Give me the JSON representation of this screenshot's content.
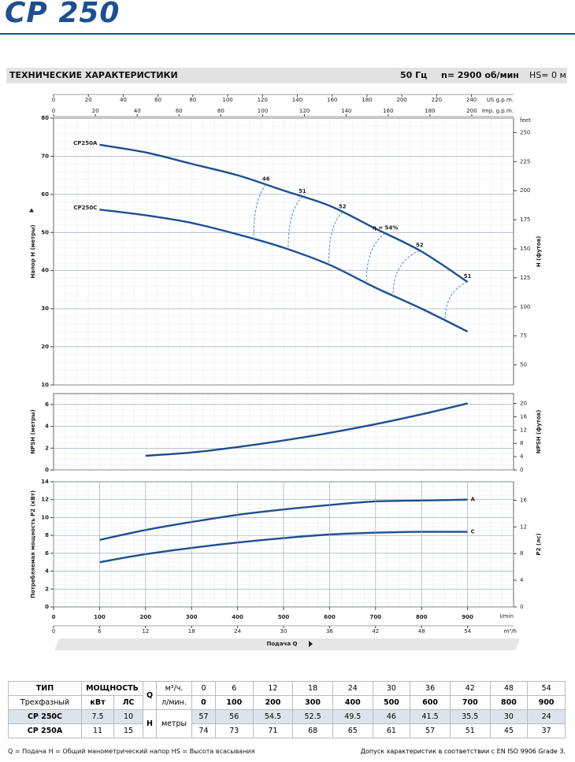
{
  "title": "CP 250",
  "header": {
    "left": "ТЕХНИЧЕСКИЕ ХАРАКТЕРИСТИКИ",
    "freq": "50 Гц",
    "speed": "n= 2900 об/мин",
    "hs": "HS= 0 м"
  },
  "chart_data": [
    {
      "type": "line",
      "ylabel": "Напор H (метры)",
      "y2label": "H (футов)",
      "y2unit": "feet",
      "x": [
        100,
        200,
        300,
        400,
        500,
        600,
        700,
        800,
        900
      ],
      "xlim": [
        0,
        1000
      ],
      "ylim": [
        10,
        80
      ],
      "yticks": [
        10,
        20,
        30,
        40,
        50,
        60,
        70,
        80
      ],
      "y2lim": [
        32.81,
        262.47
      ],
      "y2ticks": [
        50,
        75,
        100,
        125,
        150,
        175,
        200,
        225,
        250
      ],
      "top_axes": [
        {
          "label": "US g.p.m.",
          "lim": [
            0,
            264.17
          ],
          "ticks": [
            0,
            20,
            40,
            60,
            80,
            100,
            120,
            140,
            160,
            180,
            200,
            220,
            240
          ]
        },
        {
          "label": "Imp. g.p.m.",
          "lim": [
            0,
            219.97
          ],
          "ticks": [
            0,
            20,
            40,
            60,
            80,
            100,
            120,
            140,
            160,
            180,
            200
          ]
        }
      ],
      "series": [
        {
          "name": "CP250A",
          "color": "#1d4f91",
          "values": [
            73,
            71,
            68,
            65,
            61,
            57,
            51,
            45,
            37
          ]
        },
        {
          "name": "CP250C",
          "color": "#1d4f91",
          "values": [
            56,
            54.5,
            52.5,
            49.5,
            46,
            41.5,
            35.5,
            30,
            24
          ]
        }
      ],
      "efficiency_lines": [
        {
          "label": "46",
          "x": [
            462,
            435
          ]
        },
        {
          "label": "51",
          "x": [
            541,
            510
          ]
        },
        {
          "label": "52",
          "x": [
            628,
            598
          ]
        },
        {
          "label": "η = 54%",
          "x": [
            721,
            680
          ]
        },
        {
          "label": "52",
          "x": [
            796,
            738
          ]
        },
        {
          "label": "51",
          "x": [
            900,
            851
          ]
        }
      ],
      "grid": true
    },
    {
      "type": "line",
      "ylabel": "NPSH (метры)",
      "y2label": "NPSH (футов)",
      "x": [
        200,
        300,
        400,
        500,
        600,
        700,
        800,
        900
      ],
      "xlim": [
        0,
        1000
      ],
      "ylim": [
        0,
        7
      ],
      "yticks": [
        0,
        2,
        4,
        6
      ],
      "y2lim": [
        0,
        22.97
      ],
      "y2ticks": [
        0,
        4,
        8,
        12,
        16,
        20
      ],
      "series": [
        {
          "color": "#1d4f91",
          "values": [
            1.3,
            1.6,
            2.1,
            2.7,
            3.4,
            4.2,
            5.1,
            6.1
          ]
        }
      ],
      "grid": true
    },
    {
      "type": "line",
      "ylabel": "Потребляемая мощность P2 (кВт)",
      "y2label": "P2 (лс)",
      "x": [
        100,
        200,
        300,
        400,
        500,
        600,
        700,
        800,
        900
      ],
      "xlim": [
        0,
        1000
      ],
      "xticks": [
        0,
        100,
        200,
        300,
        400,
        500,
        600,
        700,
        800,
        900
      ],
      "xunit": "l/min",
      "x2lim": [
        0,
        60
      ],
      "x2ticks": [
        0,
        6,
        12,
        18,
        24,
        30,
        36,
        42,
        48,
        54
      ],
      "x2unit": "m³/h",
      "xlabel": "Подача Q",
      "ylim": [
        0,
        14
      ],
      "yticks": [
        0,
        2,
        4,
        6,
        8,
        10,
        12,
        14
      ],
      "y2lim": [
        0,
        18.77
      ],
      "y2ticks": [
        0,
        4,
        8,
        12,
        16
      ],
      "series": [
        {
          "name": "A",
          "color": "#1d4f91",
          "values": [
            7.5,
            8.6,
            9.5,
            10.3,
            10.9,
            11.4,
            11.8,
            11.9,
            12.0
          ]
        },
        {
          "name": "C",
          "color": "#1d4f91",
          "values": [
            5.0,
            5.9,
            6.6,
            7.2,
            7.7,
            8.1,
            8.3,
            8.4,
            8.4
          ]
        }
      ],
      "grid": true
    }
  ],
  "table": {
    "type_label": "ТИП",
    "power_label": "МОЩНОСТЬ",
    "q_label": "Q",
    "unit_m3h": "м³/ч.",
    "flow_m3h": [
      0,
      6,
      12,
      18,
      24,
      30,
      36,
      42,
      48,
      54
    ],
    "phase_label": "Трехфазный",
    "kw_label": "кВт",
    "hp_label": "ЛС",
    "unit_lmin": "л/мин.",
    "flow_lmin": [
      0,
      100,
      200,
      300,
      400,
      500,
      600,
      700,
      800,
      900
    ],
    "h_label": "H",
    "unit_m": "метры",
    "models": [
      {
        "name": "CP 250C",
        "kw": 7.5,
        "hp": 10,
        "head": [
          57,
          56,
          54.5,
          52.5,
          49.5,
          46,
          41.5,
          35.5,
          30,
          24
        ]
      },
      {
        "name": "CP 250A",
        "kw": 11,
        "hp": 15,
        "head": [
          74,
          73,
          71,
          68,
          65,
          61,
          57,
          51,
          45,
          37
        ]
      }
    ]
  },
  "footer": {
    "left": "Q = Подача  H = Общий манометрический напор  HS = Высота всасывания",
    "right": "Допуск характеристик в соответствии с EN ISO 9906 Grade 3."
  }
}
